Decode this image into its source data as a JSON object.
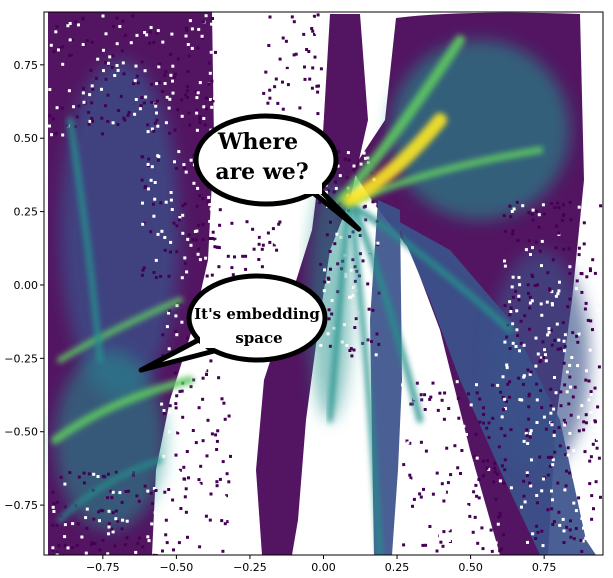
{
  "chart_data": {
    "type": "heatmap",
    "title": "",
    "xlabel": "",
    "ylabel": "",
    "xlim": [
      -0.95,
      0.95
    ],
    "ylim": [
      -0.92,
      0.93
    ],
    "x_ticks": [
      {
        "value": -0.75,
        "label": "−0.75"
      },
      {
        "value": -0.5,
        "label": "−0.50"
      },
      {
        "value": -0.25,
        "label": "−0.25"
      },
      {
        "value": 0.0,
        "label": "0.00"
      },
      {
        "value": 0.25,
        "label": "0.25"
      },
      {
        "value": 0.5,
        "label": "0.50"
      },
      {
        "value": 0.75,
        "label": "0.75"
      }
    ],
    "y_ticks": [
      {
        "value": 0.75,
        "label": "0.75"
      },
      {
        "value": 0.5,
        "label": "0.50"
      },
      {
        "value": 0.25,
        "label": "0.25"
      },
      {
        "value": 0.0,
        "label": "0.00"
      },
      {
        "value": -0.25,
        "label": "−0.25"
      },
      {
        "value": -0.5,
        "label": "−0.50"
      },
      {
        "value": -0.75,
        "label": "−0.75"
      }
    ],
    "grid": false,
    "colormap": [
      "#440154",
      "#3b528b",
      "#21918c",
      "#5ec962",
      "#fde725"
    ],
    "background_color": "#ffffff",
    "annotations": [
      {
        "lines": [
          "Where",
          "are we?"
        ],
        "pointer": [
          0.12,
          0.19
        ]
      },
      {
        "lines": [
          "It's embedding",
          "space"
        ],
        "pointer": [
          -0.62,
          -0.29
        ]
      }
    ]
  }
}
